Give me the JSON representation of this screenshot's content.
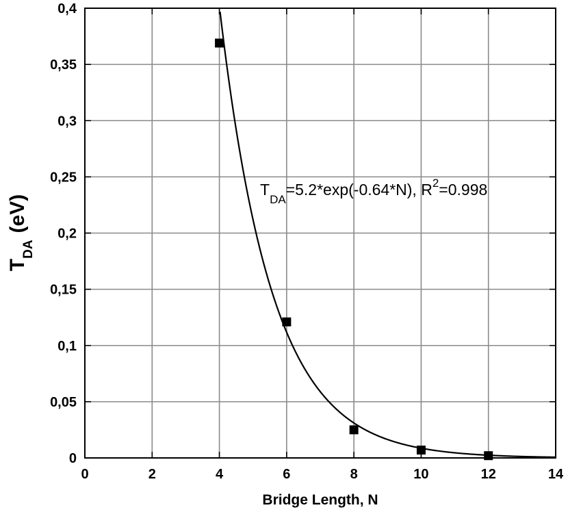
{
  "chart_data": {
    "type": "scatter",
    "xlabel": "Bridge Length, N",
    "ylabel": {
      "main": "T",
      "sub": "DA",
      "unit": "(eV)"
    },
    "xlim": [
      0,
      14
    ],
    "ylim": [
      0,
      0.4
    ],
    "xticks": [
      0,
      2,
      4,
      6,
      8,
      10,
      12,
      14
    ],
    "yticks": [
      0,
      0.05,
      0.1,
      0.15,
      0.2,
      0.25,
      0.3,
      0.35,
      0.4
    ],
    "xtick_labels": [
      "0",
      "2",
      "4",
      "6",
      "8",
      "10",
      "12",
      "14"
    ],
    "ytick_labels": [
      "0",
      "0,05",
      "0,1",
      "0,15",
      "0,2",
      "0,25",
      "0,3",
      "0,35",
      "0,4"
    ],
    "grid": true,
    "series": [
      {
        "marker": "square",
        "color": "#000000",
        "x": [
          4,
          6,
          8,
          10,
          12
        ],
        "y": [
          0.369,
          0.121,
          0.025,
          0.007,
          0.002
        ]
      }
    ],
    "fit": {
      "a": 5.2,
      "b": -0.64,
      "color": "#000000"
    },
    "annotation": {
      "t": "T",
      "sub": "DA",
      "formula": "=5.2*exp(-0.64*N), R",
      "sup": "2",
      "tail": "=0.998"
    }
  }
}
